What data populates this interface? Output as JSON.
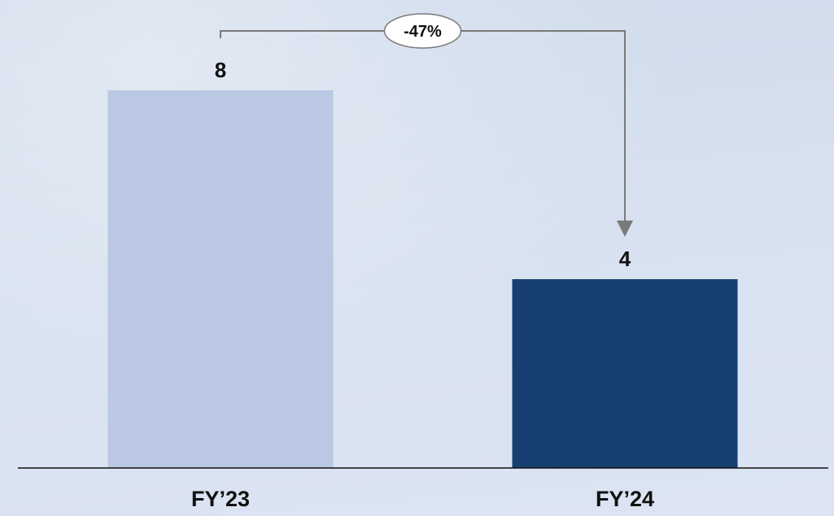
{
  "chart_data": {
    "type": "bar",
    "categories": [
      "FY’23",
      "FY’24"
    ],
    "values": [
      8,
      4
    ],
    "value_labels": [
      "8",
      "4"
    ],
    "colors": [
      "#bbc8e3",
      "#163f72"
    ],
    "ylim": [
      0,
      8
    ],
    "annotation": {
      "text": "-47%",
      "from": "FY’23",
      "to": "FY’24"
    },
    "grid": false,
    "legend": false
  }
}
